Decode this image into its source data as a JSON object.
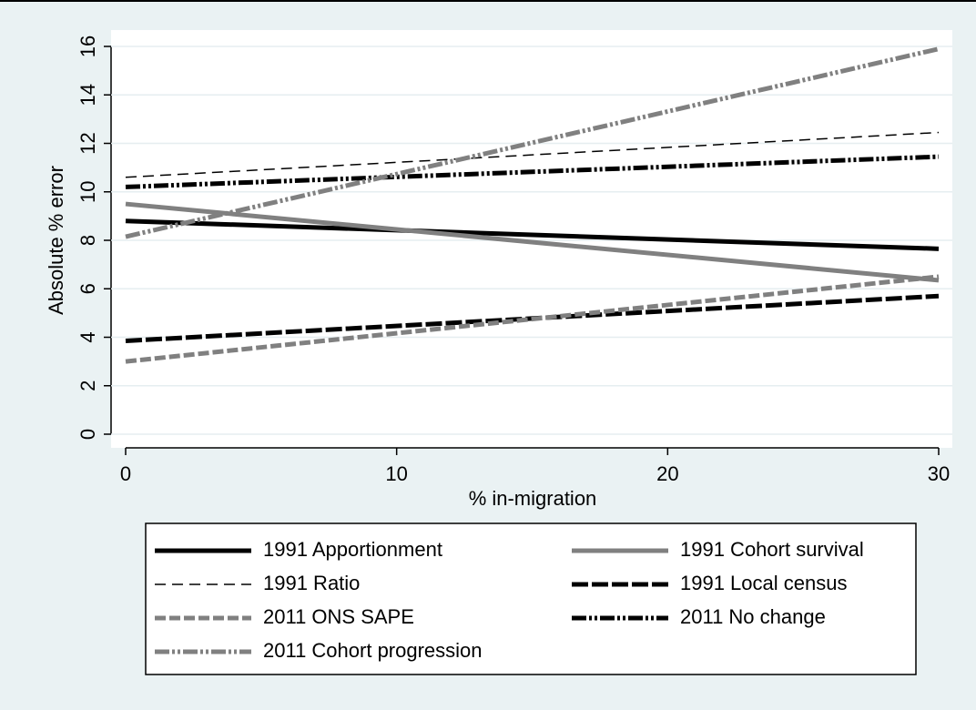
{
  "chart_data": {
    "type": "line",
    "xlabel": "% in-migration",
    "ylabel": "Absolute % error",
    "x": [
      0,
      30
    ],
    "xlim": [
      0,
      30
    ],
    "xticks": [
      0,
      10,
      20,
      30
    ],
    "ylim": [
      0,
      16
    ],
    "yticks": [
      0,
      2,
      4,
      6,
      8,
      10,
      12,
      14,
      16
    ],
    "grid": true,
    "series": [
      {
        "name": "1991 Apportionment",
        "color": "#000000",
        "width": 5,
        "dash": "none",
        "values": [
          8.8,
          7.65
        ]
      },
      {
        "name": "1991 Cohort survival",
        "color": "#808080",
        "width": 5,
        "dash": "none",
        "values": [
          9.5,
          6.35
        ]
      },
      {
        "name": "1991 Ratio",
        "color": "#000000",
        "width": 1.5,
        "dash": "12 7",
        "values": [
          10.6,
          12.45
        ]
      },
      {
        "name": "1991 Local census",
        "color": "#000000",
        "width": 5,
        "dash": "18 4",
        "values": [
          3.85,
          5.7
        ]
      },
      {
        "name": "2011 ONS SAPE",
        "color": "#808080",
        "width": 5,
        "dash": "12 4",
        "values": [
          3.0,
          6.5
        ]
      },
      {
        "name": "2011 No change",
        "color": "#000000",
        "width": 5,
        "dash": "16 3 3 3 3 3",
        "values": [
          10.2,
          11.45
        ]
      },
      {
        "name": "2011 Cohort progression",
        "color": "#808080",
        "width": 5,
        "dash": "16 3 3 3 3 3",
        "values": [
          8.15,
          15.9
        ]
      }
    ]
  }
}
